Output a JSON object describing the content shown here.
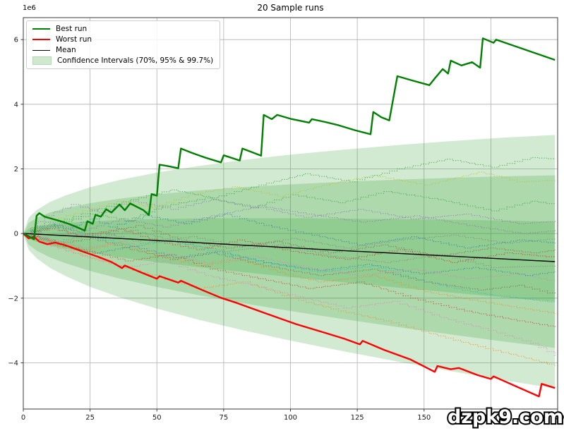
{
  "figure": {
    "watermark": "dzpk9.com",
    "background": "#ffffff"
  },
  "chart_data": {
    "type": "line",
    "title": "20 Sample runs",
    "y_offset_label": "1e6",
    "grid": true,
    "grid_color": "#b0b0b0",
    "spine_color": "#3a3a3a",
    "xlim": [
      0,
      200
    ],
    "ylim_e6": [
      -5.43,
      6.68
    ],
    "x_ticks": [
      0,
      25,
      50,
      75,
      100,
      125,
      150,
      175,
      200
    ],
    "x_tick_labels": [
      "0",
      "25",
      "50",
      "75",
      "100",
      "125",
      "150",
      "175",
      "200"
    ],
    "y_ticks": [
      6,
      4,
      2,
      0,
      -2,
      -4
    ],
    "y_tick_labels": [
      "6",
      "4",
      "2",
      "0",
      "−2",
      "−4"
    ],
    "legend": {
      "position": "upper left",
      "items": [
        {
          "label": "Best run",
          "type": "line",
          "color": "#008000",
          "weight": 2.5
        },
        {
          "label": "Worst run",
          "type": "line",
          "color": "#ff0000",
          "weight": 2.5
        },
        {
          "label": "Mean",
          "type": "line",
          "color": "#000000",
          "weight": 1.4
        },
        {
          "label": "Confidence Intervals (70%, 95% & 99.7%)",
          "type": "patch",
          "color": "#cfe8cf",
          "border": "#b5d9b5"
        }
      ]
    },
    "confidence_bands": {
      "fill_color": "#2ca02c",
      "fill_alpha": 0.22,
      "levels_pct": [
        "70%",
        "95%",
        "99.7%"
      ],
      "mean_end_e6": -0.87,
      "half_widths_e6": [
        1.24,
        2.67,
        3.92
      ],
      "x": [
        0,
        2,
        5,
        10,
        16,
        25,
        36,
        50,
        65,
        82,
        100,
        120,
        140,
        160,
        180,
        199
      ],
      "rel": [
        0,
        0.126,
        0.19,
        0.26,
        0.32,
        0.393,
        0.463,
        0.537,
        0.604,
        0.671,
        0.734,
        0.796,
        0.854,
        0.908,
        0.958,
        1.0
      ]
    },
    "mean": {
      "color": "#000000",
      "width": 1.4,
      "x": [
        0,
        40,
        80,
        120,
        160,
        199
      ],
      "y_e6": [
        0,
        -0.17,
        -0.35,
        -0.53,
        -0.7,
        -0.87
      ]
    },
    "best_run": {
      "color": "#008000",
      "width": 2.4,
      "x": [
        0,
        2,
        4,
        5,
        6,
        8,
        11,
        14,
        17,
        20,
        23,
        24,
        26,
        27,
        29,
        31,
        33,
        36,
        38,
        40,
        45,
        47,
        48,
        50,
        51,
        54,
        58,
        59,
        63,
        68,
        74,
        75,
        81,
        82,
        89,
        90,
        93,
        95,
        100,
        107,
        108,
        113,
        118,
        124,
        130,
        131,
        134,
        137,
        140,
        145,
        152,
        154,
        157,
        159,
        160,
        164,
        168,
        171,
        172,
        176,
        177,
        199
      ],
      "y_e6": [
        0,
        -0.08,
        -0.18,
        0.55,
        0.63,
        0.52,
        0.45,
        0.38,
        0.3,
        0.2,
        0.09,
        0.38,
        0.3,
        0.58,
        0.52,
        0.75,
        0.65,
        0.9,
        0.72,
        0.93,
        0.72,
        0.57,
        1.22,
        1.17,
        2.13,
        2.09,
        2.02,
        2.63,
        2.5,
        2.35,
        2.2,
        2.42,
        2.26,
        2.63,
        2.41,
        3.67,
        3.54,
        3.67,
        3.55,
        3.43,
        3.54,
        3.45,
        3.35,
        3.2,
        3.07,
        3.76,
        3.6,
        3.5,
        4.87,
        4.75,
        4.59,
        4.8,
        5.09,
        4.95,
        5.35,
        5.2,
        5.3,
        5.13,
        6.04,
        5.9,
        6.0,
        5.37
      ]
    },
    "worst_run": {
      "color": "#ff0000",
      "width": 2.4,
      "x": [
        0,
        2,
        4,
        6,
        9,
        12,
        16,
        22,
        28,
        33,
        37,
        38,
        44,
        50,
        51,
        58,
        59,
        67,
        74,
        80,
        90,
        102,
        112,
        120,
        126,
        127,
        135,
        145,
        154,
        155,
        160,
        163,
        170,
        175,
        176,
        185,
        193,
        194,
        199
      ],
      "y_e6": [
        0,
        -0.15,
        -0.1,
        -0.25,
        -0.33,
        -0.28,
        -0.37,
        -0.55,
        -0.72,
        -0.88,
        -1.07,
        -0.99,
        -1.2,
        -1.4,
        -1.32,
        -1.52,
        -1.46,
        -1.75,
        -1.99,
        -2.15,
        -2.45,
        -2.8,
        -3.05,
        -3.25,
        -3.43,
        -3.32,
        -3.6,
        -3.9,
        -4.28,
        -4.1,
        -4.2,
        -4.16,
        -4.38,
        -4.5,
        -4.42,
        -4.75,
        -5.04,
        -4.65,
        -4.78
      ]
    },
    "sample_runs": [
      {
        "color": "#1f77b4",
        "x": [
          0,
          8,
          15,
          25,
          32,
          45,
          60,
          75,
          90,
          105,
          125,
          145,
          165,
          185,
          199
        ],
        "y_e6": [
          0,
          0.35,
          0.15,
          0.45,
          0.2,
          0.55,
          0.3,
          0.6,
          0.25,
          0.0,
          -0.35,
          -0.1,
          -0.45,
          -0.2,
          -0.3
        ]
      },
      {
        "color": "#ff7f0e",
        "x": [
          0,
          10,
          22,
          35,
          50,
          65,
          80,
          95,
          110,
          130,
          150,
          170,
          185,
          199
        ],
        "y_e6": [
          0,
          -0.25,
          -0.5,
          -0.3,
          -0.7,
          -1.0,
          -0.8,
          -1.2,
          -1.5,
          -1.3,
          -1.8,
          -2.1,
          -2.3,
          -2.48
        ]
      },
      {
        "color": "#2ca02c",
        "x": [
          0,
          12,
          25,
          38,
          52,
          68,
          85,
          100,
          118,
          135,
          155,
          175,
          190,
          199
        ],
        "y_e6": [
          0,
          0.3,
          0.6,
          0.4,
          0.85,
          1.1,
          0.8,
          1.2,
          0.95,
          1.3,
          1.05,
          0.7,
          1.0,
          0.89
        ]
      },
      {
        "color": "#d62728",
        "x": [
          0,
          10,
          20,
          35,
          50,
          65,
          80,
          100,
          120,
          140,
          160,
          180,
          199
        ],
        "y_e6": [
          0,
          0.2,
          -0.1,
          0.15,
          -0.25,
          -0.5,
          -0.2,
          -0.55,
          -0.8,
          -0.5,
          -0.9,
          -0.6,
          -0.74
        ]
      },
      {
        "color": "#9467bd",
        "x": [
          0,
          8,
          18,
          28,
          40,
          55,
          70,
          88,
          105,
          125,
          145,
          165,
          185,
          199
        ],
        "y_e6": [
          0,
          0.55,
          0.9,
          0.65,
          1.0,
          0.75,
          1.05,
          0.8,
          0.5,
          0.75,
          0.45,
          0.6,
          0.3,
          0.39
        ]
      },
      {
        "color": "#8c564b",
        "x": [
          0,
          12,
          25,
          40,
          55,
          70,
          90,
          110,
          130,
          150,
          170,
          185,
          199
        ],
        "y_e6": [
          0,
          -0.3,
          -0.15,
          -0.5,
          -0.8,
          -0.6,
          -1.0,
          -1.3,
          -1.1,
          -1.5,
          -1.75,
          -1.6,
          -1.9
        ]
      },
      {
        "color": "#e377c2",
        "x": [
          0,
          10,
          22,
          36,
          50,
          68,
          85,
          105,
          125,
          145,
          165,
          185,
          199
        ],
        "y_e6": [
          0,
          -0.2,
          -0.45,
          -0.25,
          -0.6,
          -0.9,
          -0.7,
          -1.05,
          -1.3,
          -1.1,
          -1.4,
          -1.25,
          -1.5
        ]
      },
      {
        "color": "#7f7f7f",
        "x": [
          0,
          10,
          25,
          40,
          58,
          75,
          95,
          115,
          135,
          155,
          175,
          199
        ],
        "y_e6": [
          0,
          0.15,
          -0.15,
          0.1,
          -0.3,
          -0.55,
          -0.35,
          -0.7,
          -0.9,
          -0.65,
          -1.05,
          -1.0
        ]
      },
      {
        "color": "#bcbd22",
        "x": [
          0,
          10,
          22,
          35,
          48,
          62,
          78,
          95,
          112,
          130,
          150,
          170,
          185,
          199
        ],
        "y_e6": [
          0,
          0.4,
          0.7,
          1.0,
          0.8,
          1.2,
          1.45,
          1.15,
          1.5,
          1.8,
          1.5,
          1.9,
          1.6,
          1.65
        ]
      },
      {
        "color": "#17becf",
        "x": [
          0,
          10,
          25,
          40,
          55,
          72,
          90,
          110,
          130,
          150,
          170,
          185,
          199
        ],
        "y_e6": [
          0,
          0.25,
          -0.1,
          -0.4,
          -0.2,
          -0.6,
          -0.9,
          -1.2,
          -1.0,
          -1.5,
          -1.85,
          -2.0,
          -2.15
        ]
      },
      {
        "color": "#1f77b4",
        "x": [
          0,
          12,
          26,
          40,
          56,
          72,
          90,
          110,
          128,
          148,
          168,
          188,
          199
        ],
        "y_e6": [
          0,
          -0.35,
          -0.6,
          -0.4,
          -0.75,
          -0.55,
          -0.9,
          -1.15,
          -0.95,
          -1.25,
          -1.05,
          -1.3,
          -1.17
        ]
      },
      {
        "color": "#ff7f0e",
        "x": [
          0,
          10,
          22,
          35,
          50,
          65,
          82,
          100,
          118,
          135,
          152,
          170,
          185,
          199
        ],
        "y_e6": [
          0,
          -0.35,
          -0.7,
          -1.0,
          -1.35,
          -1.7,
          -1.5,
          -2.0,
          -2.4,
          -2.7,
          -3.1,
          -3.5,
          -3.8,
          -4.1
        ]
      },
      {
        "color": "#2ca02c",
        "x": [
          0,
          12,
          25,
          40,
          55,
          70,
          88,
          105,
          122,
          140,
          158,
          175,
          190,
          199
        ],
        "y_e6": [
          0,
          0.35,
          0.7,
          1.05,
          1.35,
          1.1,
          1.5,
          1.85,
          1.6,
          2.0,
          2.3,
          2.05,
          2.35,
          2.3
        ]
      },
      {
        "color": "#d62728",
        "x": [
          0,
          10,
          24,
          38,
          54,
          70,
          88,
          106,
          125,
          145,
          165,
          185,
          199
        ],
        "y_e6": [
          0,
          -0.3,
          -0.55,
          -0.85,
          -0.65,
          -1.1,
          -1.4,
          -1.7,
          -1.5,
          -2.0,
          -2.4,
          -2.7,
          -2.9
        ]
      },
      {
        "color": "#9467bd",
        "x": [
          0,
          10,
          22,
          36,
          52,
          70,
          88,
          106,
          126,
          146,
          166,
          186,
          199
        ],
        "y_e6": [
          0,
          0.3,
          0.1,
          0.45,
          0.2,
          0.55,
          0.85,
          0.6,
          0.35,
          0.55,
          0.25,
          0.0,
          0.1
        ]
      },
      {
        "color": "#8c564b",
        "x": [
          0,
          12,
          26,
          42,
          58,
          76,
          94,
          114,
          134,
          154,
          174,
          190,
          199
        ],
        "y_e6": [
          0,
          0.2,
          -0.05,
          0.25,
          -0.2,
          -0.45,
          -0.25,
          -0.6,
          -0.35,
          -0.7,
          -0.45,
          -0.6,
          -0.5
        ]
      },
      {
        "color": "#e377c2",
        "x": [
          0,
          10,
          24,
          38,
          52,
          68,
          85,
          102,
          120,
          138,
          156,
          174,
          190,
          199
        ],
        "y_e6": [
          0,
          -0.4,
          -0.75,
          -1.05,
          -0.85,
          -1.3,
          -1.6,
          -1.95,
          -2.3,
          -2.1,
          -2.6,
          -3.0,
          -3.4,
          -3.78
        ]
      },
      {
        "color": "#7f7f7f",
        "x": [
          0,
          12,
          28,
          44,
          62,
          80,
          100,
          120,
          140,
          160,
          180,
          199
        ],
        "y_e6": [
          0,
          -0.25,
          0.05,
          -0.3,
          -0.1,
          -0.4,
          -0.15,
          -0.45,
          -0.2,
          -0.05,
          -0.3,
          -0.15
        ]
      }
    ]
  }
}
